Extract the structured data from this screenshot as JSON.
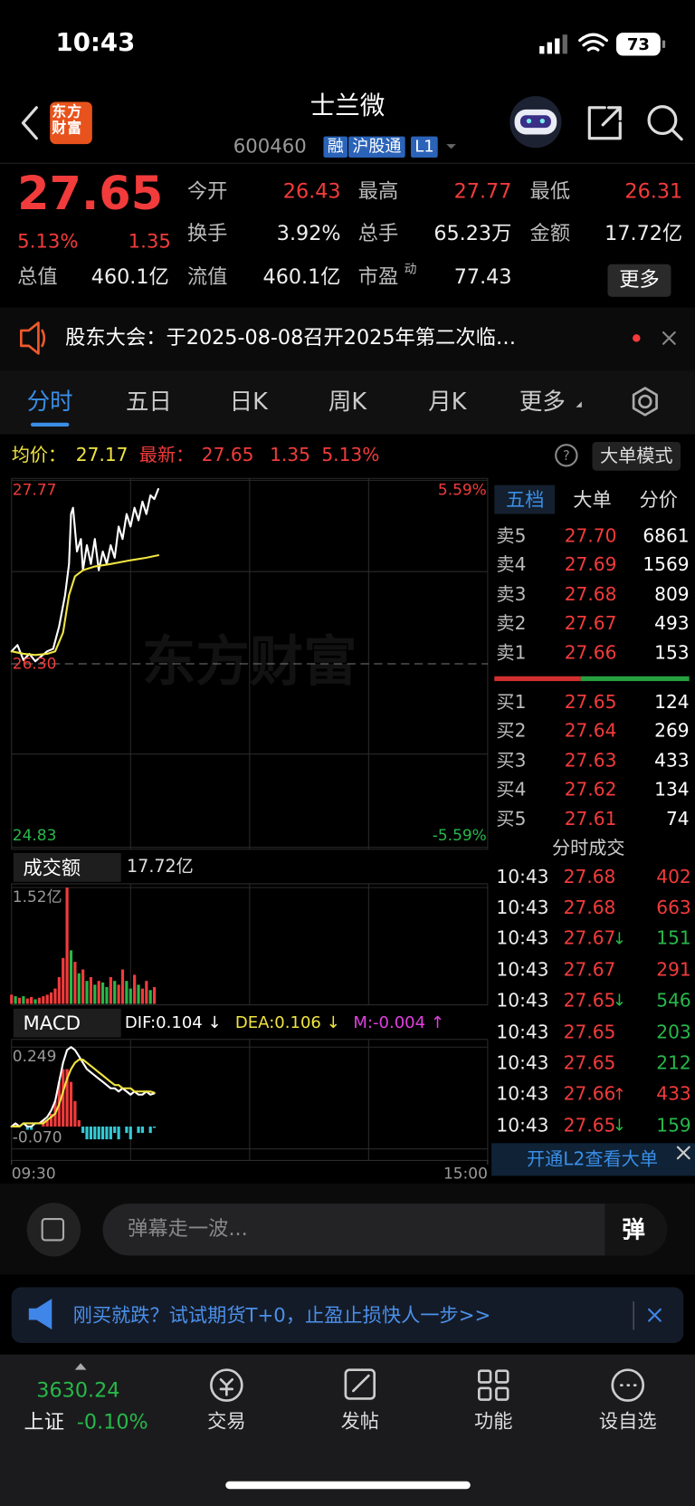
{
  "status_bar": {
    "time": "10:43",
    "battery": "73"
  },
  "header": {
    "logo": "东方财富",
    "title": "士兰微",
    "code": "600460",
    "tags": [
      "融",
      "沪股通",
      "L1"
    ]
  },
  "quote": {
    "price": "27.65",
    "change_pct": "5.13%",
    "change": "1.35",
    "stats": [
      {
        "label": "今开",
        "value": "26.43"
      },
      {
        "label": "最高",
        "value": "27.77"
      },
      {
        "label": "最低",
        "value": "26.31"
      },
      {
        "label": "换手",
        "value": "3.92%"
      },
      {
        "label": "总手",
        "value": "65.23万"
      },
      {
        "label": "金额",
        "value": "17.72亿"
      },
      {
        "label": "总值",
        "value": "460.1亿"
      },
      {
        "label": "流值",
        "value": "460.1亿"
      },
      {
        "label": "市盈",
        "note": "动",
        "value": "77.43"
      }
    ],
    "more": "更多"
  },
  "notice": "股东大会：于2025-08-08召开2025年第二次临…",
  "tabs": [
    "分时",
    "五日",
    "日K",
    "周K",
    "月K",
    "更多"
  ],
  "summary": {
    "avg_label": "均价：",
    "avg": "27.17",
    "latest_label": "最新：",
    "latest": "27.65",
    "change": "1.35",
    "change_pct": "5.13%",
    "mode": "大单模式"
  },
  "watermark": "东方财富",
  "chart_data": [
    {
      "type": "line",
      "ylim": [
        24.83,
        27.77
      ],
      "yticks": [
        27.77,
        {
          "value": 26.3,
          "label": "26.30"
        },
        24.83
      ],
      "y2lim": [
        -5.59,
        5.59
      ],
      "y2ticks": [
        {
          "value": 5.59,
          "label": "5.59%"
        },
        {
          "value": -5.59,
          "label": "-5.59%"
        }
      ],
      "xlim": [
        0,
        240
      ],
      "xticks": [
        {
          "value": 0,
          "label": "09:30"
        },
        {
          "value": 240,
          "label": "15:00"
        }
      ],
      "series": [
        {
          "color": "#ffffff",
          "x": [
            0,
            3,
            6,
            9,
            12,
            15,
            18,
            21,
            24,
            27,
            29,
            30,
            31,
            33,
            35,
            36,
            38,
            40,
            42,
            44,
            46,
            48,
            50,
            52,
            54,
            56,
            58,
            60,
            62,
            64,
            66,
            68,
            70,
            72,
            74
          ],
          "values": [
            26.4,
            26.45,
            26.33,
            26.38,
            26.32,
            26.36,
            26.4,
            26.42,
            26.6,
            26.85,
            27.1,
            27.5,
            27.55,
            27.2,
            27.3,
            27.05,
            27.25,
            27.1,
            27.3,
            27.05,
            27.2,
            27.1,
            27.25,
            27.15,
            27.4,
            27.3,
            27.5,
            27.4,
            27.55,
            27.45,
            27.6,
            27.5,
            27.65,
            27.62,
            27.7
          ]
        },
        {
          "color": "#f0e442",
          "x": [
            0,
            6,
            12,
            18,
            22,
            26,
            29,
            32,
            36,
            42,
            50,
            60,
            68,
            74
          ],
          "values": [
            26.4,
            26.38,
            26.37,
            26.38,
            26.4,
            26.55,
            26.85,
            27.0,
            27.05,
            27.08,
            27.1,
            27.13,
            27.15,
            27.17
          ]
        }
      ]
    },
    {
      "type": "bar",
      "ylim": [
        0,
        1.52
      ],
      "yticks": [
        {
          "value": 1.52,
          "label": "1.52亿"
        }
      ],
      "xlim": [
        0,
        240
      ],
      "x": [
        0,
        2,
        4,
        6,
        8,
        10,
        12,
        14,
        16,
        18,
        20,
        22,
        24,
        26,
        28,
        30,
        32,
        34,
        36,
        38,
        40,
        42,
        44,
        46,
        48,
        50,
        52,
        54,
        56,
        58,
        60,
        62,
        64,
        66,
        68,
        70,
        72
      ],
      "values": [
        0.12,
        0.1,
        0.08,
        0.1,
        0.07,
        0.09,
        0.06,
        0.08,
        0.1,
        0.12,
        0.15,
        0.2,
        0.35,
        0.6,
        1.52,
        0.7,
        0.55,
        0.4,
        0.45,
        0.3,
        0.35,
        0.25,
        0.3,
        0.28,
        0.22,
        0.35,
        0.3,
        0.25,
        0.45,
        0.3,
        0.2,
        0.38,
        0.25,
        0.2,
        0.3,
        0.18,
        0.22
      ],
      "colors": [
        "#f23b3b",
        "#27b84a",
        "#f23b3b",
        "#27b84a",
        "#f23b3b",
        "#f23b3b",
        "#27b84a",
        "#f23b3b",
        "#f23b3b",
        "#f23b3b",
        "#f23b3b",
        "#f23b3b",
        "#f23b3b",
        "#f23b3b",
        "#f23b3b",
        "#27b84a",
        "#f23b3b",
        "#27b84a",
        "#f23b3b",
        "#27b84a",
        "#f23b3b",
        "#27b84a",
        "#f23b3b",
        "#27b84a",
        "#27b84a",
        "#f23b3b",
        "#27b84a",
        "#f23b3b",
        "#f23b3b",
        "#27b84a",
        "#27b84a",
        "#f23b3b",
        "#27b84a",
        "#f23b3b",
        "#f23b3b",
        "#27b84a",
        "#f23b3b"
      ]
    },
    {
      "type": "macd",
      "ylim": [
        -0.07,
        0.249
      ],
      "yticks": [
        0.249,
        {
          "value": -0.07,
          "label": "-0.070"
        }
      ],
      "xlim": [
        0,
        240
      ],
      "x": [
        0,
        2,
        4,
        6,
        8,
        10,
        12,
        14,
        16,
        18,
        20,
        22,
        24,
        26,
        28,
        30,
        32,
        34,
        36,
        38,
        40,
        42,
        44,
        46,
        48,
        50,
        52,
        54,
        56,
        58,
        60,
        62,
        64,
        66,
        68,
        70,
        72
      ],
      "series": [
        {
          "color": "#ffffff",
          "values": [
            0,
            0.01,
            0,
            0.01,
            0,
            0,
            0.01,
            0.01,
            0.02,
            0.03,
            0.05,
            0.08,
            0.14,
            0.2,
            0.24,
            0.249,
            0.24,
            0.22,
            0.2,
            0.18,
            0.17,
            0.16,
            0.15,
            0.14,
            0.13,
            0.12,
            0.12,
            0.11,
            0.12,
            0.11,
            0.1,
            0.11,
            0.1,
            0.1,
            0.11,
            0.1,
            0.104
          ]
        },
        {
          "color": "#f0e442",
          "values": [
            0,
            0,
            0,
            0.01,
            0.01,
            0.01,
            0.01,
            0.01,
            0.01,
            0.02,
            0.03,
            0.04,
            0.07,
            0.11,
            0.15,
            0.18,
            0.2,
            0.21,
            0.21,
            0.2,
            0.19,
            0.18,
            0.17,
            0.16,
            0.15,
            0.14,
            0.13,
            0.13,
            0.12,
            0.12,
            0.12,
            0.11,
            0.11,
            0.11,
            0.11,
            0.11,
            0.106
          ]
        }
      ],
      "histogram": {
        "values": [
          0,
          0.01,
          0,
          0,
          -0.01,
          -0.01,
          0,
          0,
          0.02,
          0.02,
          0.04,
          0.08,
          0.14,
          0.18,
          0.18,
          0.14,
          0.08,
          0.02,
          -0.02,
          -0.04,
          -0.04,
          -0.04,
          -0.04,
          -0.04,
          -0.04,
          -0.04,
          -0.02,
          -0.04,
          0,
          -0.02,
          -0.04,
          0,
          -0.02,
          -0.02,
          0,
          -0.02,
          -0.004
        ],
        "colors": {
          "up": "#f23b3b",
          "down": "#35c9d6"
        }
      }
    }
  ],
  "volume_header": {
    "label": "成交额",
    "total": "17.72亿"
  },
  "macd_header": {
    "label": "MACD",
    "dif": "DIF:0.104 ↓",
    "dea": "DEA:0.106 ↓",
    "m": "M:-0.004 ↑"
  },
  "order_book": {
    "tabs": [
      "五档",
      "大单",
      "分价"
    ],
    "asks": [
      {
        "label": "卖5",
        "price": "27.70",
        "volume": "6861"
      },
      {
        "label": "卖4",
        "price": "27.69",
        "volume": "1569"
      },
      {
        "label": "卖3",
        "price": "27.68",
        "volume": "809"
      },
      {
        "label": "卖2",
        "price": "27.67",
        "volume": "493"
      },
      {
        "label": "卖1",
        "price": "27.66",
        "volume": "153"
      }
    ],
    "bids": [
      {
        "label": "买1",
        "price": "27.65",
        "volume": "124"
      },
      {
        "label": "买2",
        "price": "27.64",
        "volume": "269"
      },
      {
        "label": "买3",
        "price": "27.63",
        "volume": "433"
      },
      {
        "label": "买4",
        "price": "27.62",
        "volume": "134"
      },
      {
        "label": "买5",
        "price": "27.61",
        "volume": "74"
      }
    ]
  },
  "trades": {
    "title": "分时成交",
    "rows": [
      {
        "time": "10:43",
        "price": "27.68",
        "volume": "402",
        "color": "#f23b3b"
      },
      {
        "time": "10:43",
        "price": "27.68",
        "volume": "663",
        "color": "#f23b3b"
      },
      {
        "time": "10:43",
        "price": "27.67",
        "arrow": "↓",
        "volume": "151",
        "color": "#27b84a"
      },
      {
        "time": "10:43",
        "price": "27.67",
        "volume": "291",
        "color": "#f23b3b"
      },
      {
        "time": "10:43",
        "price": "27.65",
        "arrow": "↓",
        "volume": "546",
        "color": "#27b84a"
      },
      {
        "time": "10:43",
        "price": "27.65",
        "volume": "203",
        "color": "#27b84a"
      },
      {
        "time": "10:43",
        "price": "27.65",
        "volume": "212",
        "color": "#27b84a"
      },
      {
        "time": "10:43",
        "price": "27.66",
        "arrow": "↑",
        "volume": "433",
        "color": "#f23b3b"
      },
      {
        "time": "10:43",
        "price": "27.65",
        "arrow": "↓",
        "volume": "159",
        "color": "#27b84a"
      }
    ],
    "l2": "开通L2查看大单"
  },
  "comment": {
    "placeholder": "弹幕走一波...",
    "button": "弹"
  },
  "ad": "刚买就跌？试试期货T+0，止盈止损快人一步>>",
  "index": {
    "value": "3630.24",
    "name": "上证",
    "change": "-0.10%"
  },
  "nav": [
    "交易",
    "发帖",
    "功能",
    "设自选"
  ]
}
